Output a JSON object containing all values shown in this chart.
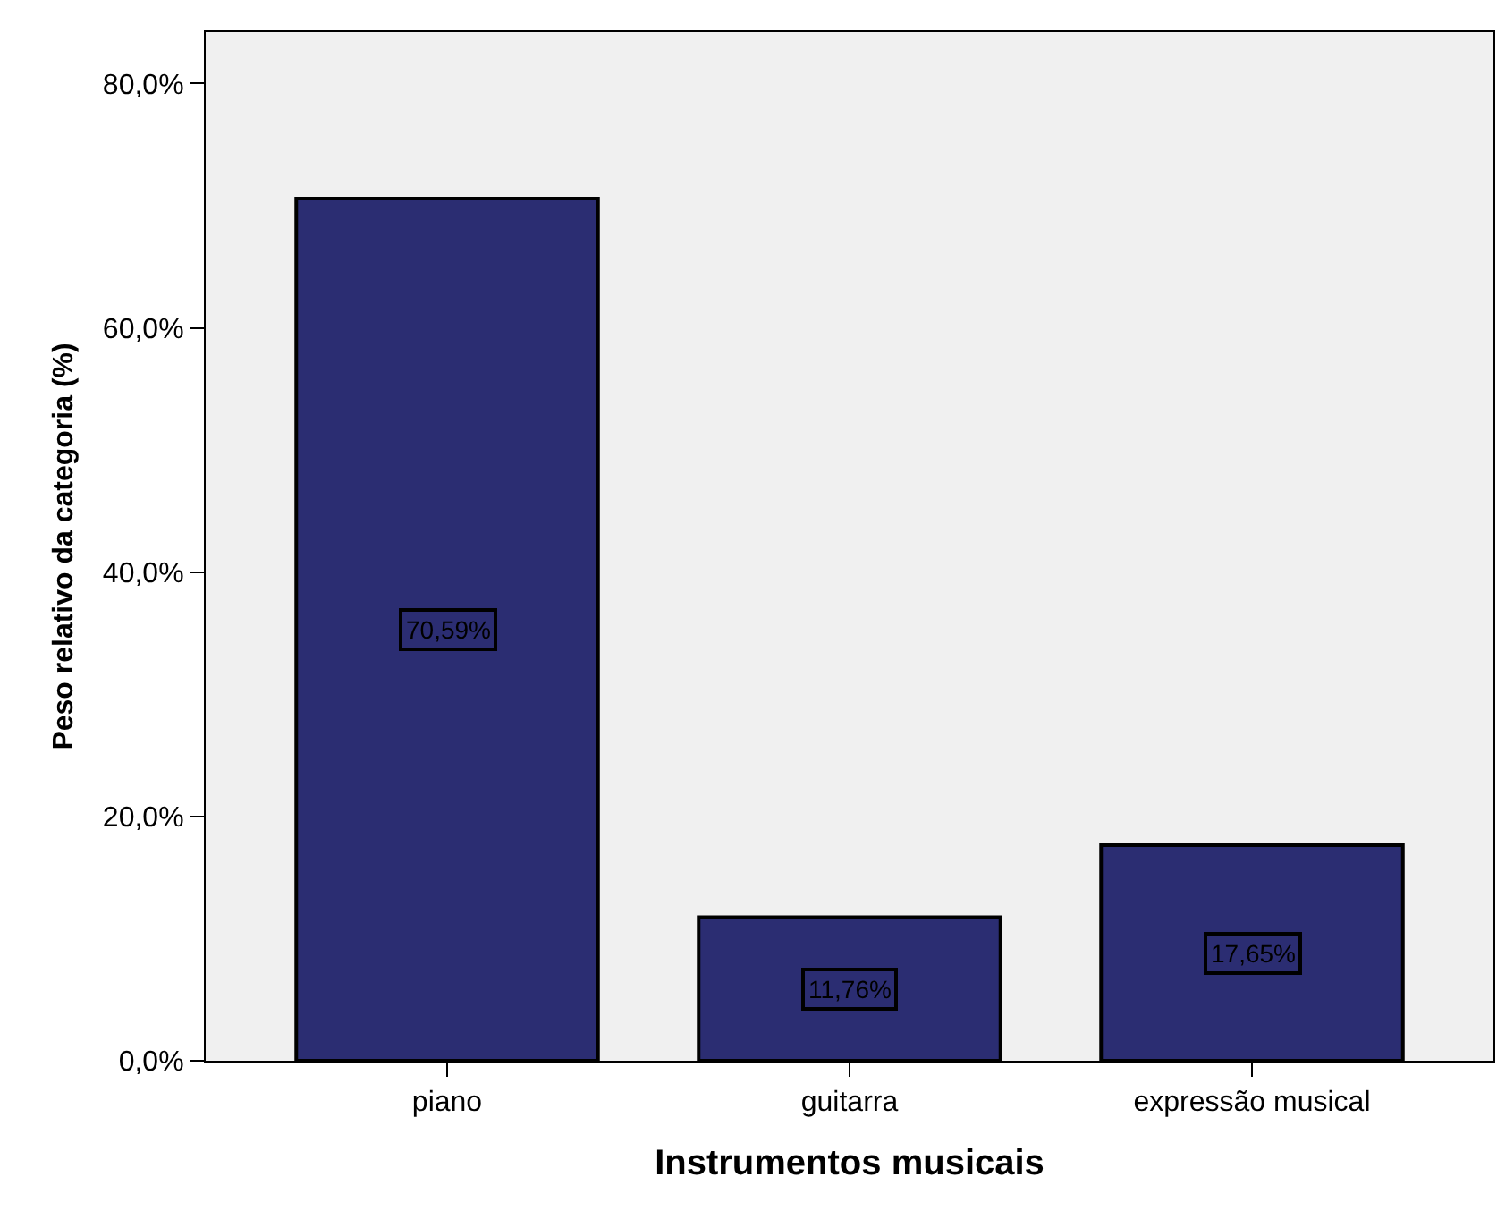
{
  "chart_data": {
    "type": "bar",
    "xlabel": "Instrumentos musicais",
    "ylabel": "Peso relativo da categoria (%)",
    "categories": [
      "piano",
      "guitarra",
      "expressão musical"
    ],
    "values": [
      70.59,
      11.76,
      17.65
    ],
    "value_labels": [
      "70,59%",
      "11,76%",
      "17,65%"
    ],
    "color": "#2b2d72",
    "ylim": [
      0,
      84.2
    ],
    "yticks": [
      {
        "value": 0,
        "label": "0,0%"
      },
      {
        "value": 20,
        "label": "20,0%"
      },
      {
        "value": 40,
        "label": "40,0%"
      },
      {
        "value": 60,
        "label": "60,0%"
      },
      {
        "value": 80,
        "label": "80,0%"
      }
    ],
    "grid": false,
    "legend": false
  }
}
